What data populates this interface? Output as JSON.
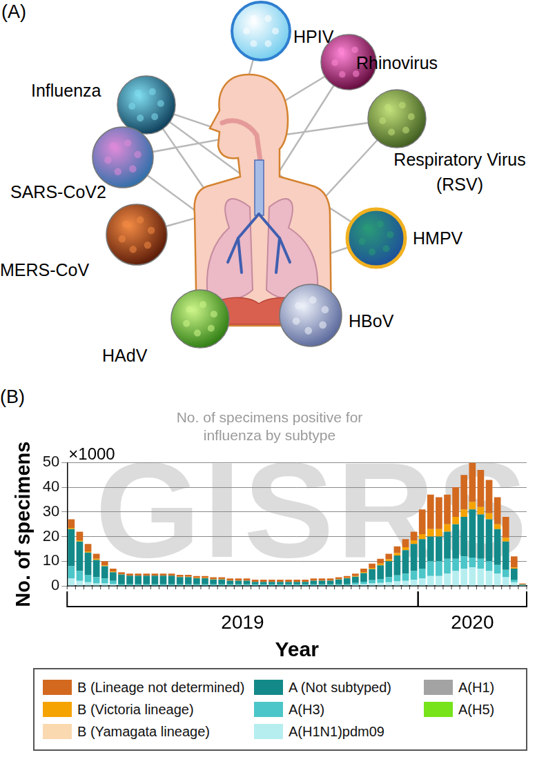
{
  "diagram": {
    "label": "(A)",
    "nodes": [
      {
        "label": "HPIV"
      },
      {
        "label": "Rhinovirus"
      },
      {
        "label": "Influenza"
      },
      {
        "label": "Respiratory Virus\n(RSV)"
      },
      {
        "label": "SARS-CoV2"
      },
      {
        "label": "HMPV"
      },
      {
        "label": "MERS-CoV"
      },
      {
        "label": "HAdV"
      },
      {
        "label": "HBoV"
      }
    ]
  },
  "chart_data": {
    "type": "bar",
    "panel_label": "(B)",
    "title": "No. of specimens positive for\ninfluenza by subtype",
    "watermark": "GISRS",
    "ylabel": "No. of specimens",
    "y_scale_label": "×1000",
    "xlabel": "Year",
    "categories": [
      null,
      null,
      null,
      null,
      null,
      null,
      null,
      null,
      null,
      null,
      null,
      null,
      null,
      null,
      null,
      null,
      null,
      null,
      null,
      null,
      null,
      null,
      null,
      null,
      null,
      null,
      null,
      null,
      null,
      null,
      null,
      null,
      null,
      null,
      null,
      null,
      null,
      null,
      null,
      null,
      null,
      null,
      null,
      null,
      null,
      null,
      null,
      null,
      null,
      null,
      null,
      null,
      null,
      null,
      null
    ],
    "x_groups": [
      {
        "label": "2019",
        "size": 42
      },
      {
        "label": "2020",
        "size": 13
      }
    ],
    "ylim": [
      0,
      50
    ],
    "yticks": [
      0,
      10,
      20,
      30,
      40,
      50
    ],
    "grid": true,
    "stacked": true,
    "legend": "bottom",
    "tick_labels": "y",
    "series": [
      {
        "name": "B (Lineage not determined)",
        "color": "#d2691f",
        "values": [
          3.5,
          3.5,
          3,
          2,
          1.7,
          1.2,
          0.8,
          0.8,
          0.8,
          0.8,
          0.8,
          0.8,
          0.8,
          0.8,
          0.8,
          0.8,
          0.8,
          0.8,
          0.8,
          0.8,
          0.8,
          0.8,
          0.8,
          0.8,
          0.8,
          0.8,
          0.8,
          0.8,
          0.8,
          0.8,
          0.8,
          0.8,
          0.8,
          0.8,
          1,
          1.4,
          1.7,
          2,
          2.2,
          2.7,
          3.3,
          3.5,
          10,
          14,
          13,
          12,
          12,
          14,
          16,
          15,
          13.5,
          11,
          8.5,
          4.5,
          0.4
        ]
      },
      {
        "name": "B (Victoria lineage)",
        "color": "#f5a300",
        "values": [
          0.5,
          0.5,
          0.5,
          0.5,
          0.3,
          0.3,
          0.1,
          0.1,
          0.1,
          0.1,
          0.1,
          0.1,
          0.1,
          0.1,
          0.1,
          0.1,
          0.1,
          0.1,
          0.1,
          0.1,
          0.1,
          0.1,
          0.1,
          0.1,
          0.1,
          0.1,
          0.1,
          0.1,
          0.1,
          0.1,
          0.1,
          0.1,
          0.1,
          0.1,
          0.3,
          0.4,
          0.5,
          0.7,
          0.8,
          1,
          1.2,
          1.5,
          2,
          3,
          3,
          3,
          3,
          3,
          3,
          3,
          2.5,
          2,
          1.5,
          0.5,
          0.1
        ]
      },
      {
        "name": "B (Yamagata lineage)",
        "color": "#fad9b0",
        "values": [
          0,
          0,
          0,
          0,
          0,
          0,
          0,
          0,
          0,
          0,
          0,
          0,
          0,
          0,
          0,
          0,
          0,
          0,
          0,
          0,
          0,
          0,
          0,
          0,
          0,
          0,
          0,
          0,
          0,
          0,
          0,
          0,
          0,
          0,
          0,
          0,
          0,
          0,
          0,
          0,
          0,
          0,
          0,
          0,
          0,
          0,
          0,
          0,
          0,
          0,
          0,
          0,
          0,
          0,
          0
        ]
      },
      {
        "name": "A (Not subtyped)",
        "color": "#138a89",
        "values": [
          15,
          12,
          9,
          7,
          5,
          3.5,
          4,
          3.5,
          3.5,
          3.5,
          3.5,
          3.5,
          3.5,
          3,
          3,
          2.5,
          2.5,
          2,
          2,
          1.5,
          1.5,
          1.5,
          1,
          1,
          1,
          1,
          1,
          1,
          1,
          1.5,
          1.5,
          1.5,
          2,
          2.5,
          2.5,
          3.5,
          4.5,
          5.5,
          6.5,
          8,
          9.5,
          11,
          12,
          10,
          10,
          11,
          14,
          16,
          19.5,
          18,
          17,
          14.5,
          11.5,
          4.5,
          0.3
        ]
      },
      {
        "name": "A(H3)",
        "color": "#4cc6c8",
        "values": [
          5,
          4,
          3,
          2.5,
          2,
          1.3,
          0.4,
          0.4,
          0.4,
          0.4,
          0.4,
          0.4,
          0.4,
          0.4,
          0.4,
          0.4,
          0.4,
          0.4,
          0.4,
          0.4,
          0.4,
          0.4,
          0.4,
          0.4,
          0.4,
          0.4,
          0.4,
          0.4,
          0.4,
          0.4,
          0.4,
          0.4,
          0.4,
          0.4,
          0.7,
          1,
          1.3,
          1.6,
          2,
          2.5,
          3,
          3.5,
          4,
          6,
          6,
          6,
          5,
          5,
          4,
          4,
          4,
          3.5,
          3,
          1,
          0.1
        ]
      },
      {
        "name": "A(H1N1)pdm09",
        "color": "#b6eef0",
        "values": [
          3,
          2,
          1.5,
          1,
          1,
          0.7,
          0.2,
          0.2,
          0.2,
          0.2,
          0.2,
          0.2,
          0.2,
          0.2,
          0.2,
          0.2,
          0.2,
          0.2,
          0.2,
          0.2,
          0.2,
          0.2,
          0.2,
          0.2,
          0.2,
          0.2,
          0.2,
          0.2,
          0.2,
          0.2,
          0.2,
          0.2,
          0.2,
          0.2,
          0.5,
          0.7,
          1,
          1.2,
          1.5,
          1.8,
          2,
          2.5,
          3,
          4,
          4,
          5,
          6,
          7,
          7.5,
          7,
          6,
          5,
          3.5,
          1.5,
          0.1
        ]
      },
      {
        "name": "A(H1)",
        "color": "#a3a3a3",
        "values": [
          0,
          0,
          0,
          0,
          0,
          0,
          0,
          0,
          0,
          0,
          0,
          0,
          0,
          0,
          0,
          0,
          0,
          0,
          0,
          0,
          0,
          0,
          0,
          0,
          0,
          0,
          0,
          0,
          0,
          0,
          0,
          0,
          0,
          0,
          0,
          0,
          0,
          0,
          0,
          0,
          0,
          0,
          0,
          0,
          0,
          0,
          0,
          0,
          0,
          0,
          0,
          0,
          0,
          0,
          0
        ]
      },
      {
        "name": "A(H5)",
        "color": "#77e31a",
        "values": [
          0,
          0,
          0,
          0,
          0,
          0,
          0,
          0,
          0,
          0,
          0,
          0,
          0,
          0,
          0,
          0,
          0,
          0,
          0,
          0,
          0,
          0,
          0,
          0,
          0,
          0,
          0,
          0,
          0,
          0,
          0,
          0,
          0,
          0,
          0,
          0,
          0,
          0,
          0,
          0,
          0,
          0,
          0,
          0,
          0,
          0,
          0,
          0,
          0,
          0,
          0,
          0,
          0,
          0,
          0
        ]
      }
    ]
  }
}
